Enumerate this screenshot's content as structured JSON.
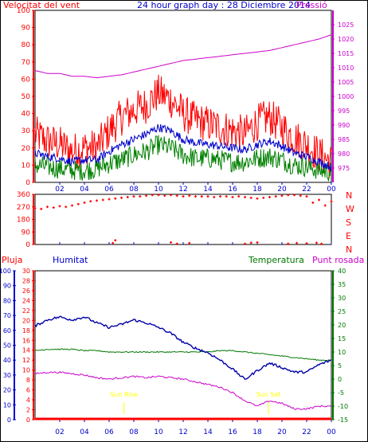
{
  "header": {
    "left_label": "Velocitat del vent",
    "title": "24 hour graph day : 28 Diciembre 2014",
    "right_label": "Pressió"
  },
  "bottom_header": {
    "rain": "Pluja",
    "humidity": "Humitat",
    "temperature": "Temperatura",
    "dewpoint": "Punt rosada"
  },
  "markers": {
    "sunrise": "Sun Rise",
    "sunset": "Sun Set"
  },
  "colors": {
    "wind_gust": "#ff0000",
    "wind_avg": "#0000cc",
    "wind_min": "#008000",
    "pressure": "#cc00cc",
    "direction": "#ff0000",
    "humidity": "#0000aa",
    "temperature": "#007700",
    "dewpoint": "#cc00cc",
    "rain": "#ff0000",
    "sun": "#ffff00"
  },
  "chart_data": [
    {
      "type": "line",
      "x_ticks": [
        "02",
        "04",
        "06",
        "08",
        "10",
        "12",
        "14",
        "16",
        "18",
        "20",
        "22",
        "00"
      ],
      "ylabel_left": "Velocitat del vent",
      "ylabel_right": "Pressió",
      "ylim_left": [
        0,
        100
      ],
      "ylim_right": [
        970,
        1030
      ],
      "yticks_left": [
        0,
        10,
        20,
        30,
        40,
        50,
        60,
        70,
        80,
        90,
        100
      ],
      "yticks_right": [
        975,
        980,
        985,
        990,
        995,
        1000,
        1005,
        1010,
        1015,
        1020,
        1025
      ],
      "series": [
        {
          "name": "gust",
          "axis": "left",
          "x": [
            0,
            1,
            2,
            3,
            4,
            5,
            6,
            7,
            8,
            9,
            10,
            11,
            12,
            13,
            14,
            15,
            16,
            17,
            18,
            19,
            20,
            21,
            22,
            23,
            24
          ],
          "values": [
            28,
            24,
            22,
            18,
            20,
            20,
            30,
            38,
            42,
            45,
            52,
            48,
            40,
            36,
            34,
            32,
            30,
            28,
            35,
            38,
            32,
            26,
            22,
            16,
            12
          ]
        },
        {
          "name": "avg",
          "axis": "left",
          "x": [
            0,
            1,
            2,
            3,
            4,
            5,
            6,
            7,
            8,
            9,
            10,
            11,
            12,
            13,
            14,
            15,
            16,
            17,
            18,
            19,
            20,
            21,
            22,
            23,
            24
          ],
          "values": [
            17,
            15,
            14,
            12,
            13,
            13,
            18,
            22,
            25,
            28,
            32,
            30,
            25,
            23,
            22,
            21,
            20,
            19,
            22,
            24,
            21,
            17,
            15,
            12,
            9
          ]
        },
        {
          "name": "min",
          "axis": "left",
          "x": [
            0,
            1,
            2,
            3,
            4,
            5,
            6,
            7,
            8,
            9,
            10,
            11,
            12,
            13,
            14,
            15,
            16,
            17,
            18,
            19,
            20,
            21,
            22,
            23,
            24
          ],
          "values": [
            10,
            9,
            8,
            7,
            7,
            8,
            11,
            13,
            16,
            18,
            22,
            20,
            16,
            14,
            14,
            13,
            12,
            12,
            14,
            15,
            13,
            10,
            9,
            7,
            6
          ]
        },
        {
          "name": "pressure",
          "axis": "right",
          "x": [
            0,
            1,
            2,
            3,
            4,
            5,
            6,
            7,
            8,
            9,
            10,
            11,
            12,
            13,
            14,
            15,
            16,
            17,
            18,
            19,
            20,
            21,
            22,
            23,
            24
          ],
          "values": [
            1009,
            1008,
            1008,
            1007,
            1007,
            1006.5,
            1007,
            1007.5,
            1008.5,
            1009.5,
            1010.5,
            1011.5,
            1012.5,
            1013,
            1013.5,
            1014,
            1014.5,
            1015,
            1015.5,
            1016,
            1017,
            1018,
            1019,
            1020,
            1021.5
          ]
        }
      ]
    },
    {
      "type": "scatter",
      "x_ticks": [
        "02",
        "04",
        "06",
        "08",
        "10",
        "12",
        "14",
        "16",
        "18",
        "20",
        "22",
        "00"
      ],
      "yticks": [
        0,
        90,
        180,
        270,
        360
      ],
      "ylim": [
        0,
        360
      ],
      "compass": [
        "N",
        "W",
        "S",
        "E",
        "N"
      ],
      "points": [
        [
          0,
          260
        ],
        [
          0.5,
          255
        ],
        [
          1,
          270
        ],
        [
          1.5,
          265
        ],
        [
          2,
          275
        ],
        [
          2.5,
          270
        ],
        [
          3,
          280
        ],
        [
          3.5,
          290
        ],
        [
          4,
          300
        ],
        [
          4.5,
          310
        ],
        [
          5,
          315
        ],
        [
          5.5,
          320
        ],
        [
          6,
          325
        ],
        [
          6.5,
          330
        ],
        [
          7,
          335
        ],
        [
          7.5,
          340
        ],
        [
          8,
          345
        ],
        [
          8.5,
          345
        ],
        [
          9,
          350
        ],
        [
          9.5,
          355
        ],
        [
          10,
          355
        ],
        [
          10.5,
          350
        ],
        [
          11,
          355
        ],
        [
          11.5,
          350
        ],
        [
          12,
          345
        ],
        [
          12.5,
          350
        ],
        [
          13,
          345
        ],
        [
          13.5,
          345
        ],
        [
          14,
          345
        ],
        [
          14.5,
          340
        ],
        [
          15,
          345
        ],
        [
          15.5,
          345
        ],
        [
          16,
          340
        ],
        [
          16.5,
          345
        ],
        [
          17,
          340
        ],
        [
          17.5,
          335
        ],
        [
          18,
          330
        ],
        [
          18.5,
          335
        ],
        [
          19,
          340
        ],
        [
          19.5,
          345
        ],
        [
          20,
          350
        ],
        [
          20.5,
          355
        ],
        [
          21,
          355
        ],
        [
          21.5,
          350
        ],
        [
          22,
          345
        ],
        [
          22.5,
          300
        ],
        [
          23,
          320
        ],
        [
          23.5,
          280
        ],
        [
          24,
          310
        ],
        [
          6.5,
          30
        ],
        [
          6.3,
          10
        ],
        [
          11,
          15
        ],
        [
          11.5,
          5
        ],
        [
          12.5,
          10
        ],
        [
          17,
          5
        ],
        [
          17.5,
          12
        ],
        [
          18,
          15
        ],
        [
          20.5,
          5
        ],
        [
          21.2,
          10
        ],
        [
          22,
          8
        ],
        [
          22.8,
          12
        ],
        [
          23.2,
          5
        ]
      ]
    },
    {
      "type": "line",
      "x_ticks": [
        "02",
        "04",
        "06",
        "08",
        "10",
        "12",
        "14",
        "16",
        "18",
        "20",
        "22",
        "00"
      ],
      "ylabel_left_rain": "Pluja",
      "ylabel_left_hum": "Humitat",
      "ylabel_right_temp": "Temperatura",
      "ylabel_right_dew": "Punt rosada",
      "ylim_humidity": [
        0,
        100
      ],
      "ylim_rain": [
        0,
        30
      ],
      "ylim_temp": [
        -15,
        40
      ],
      "yticks_humidity": [
        0,
        10,
        20,
        30,
        40,
        50,
        60,
        70,
        80,
        90,
        100
      ],
      "yticks_rain": [
        0,
        2,
        4,
        6,
        8,
        10,
        12,
        14,
        16,
        18,
        20,
        22,
        24,
        26,
        28,
        30
      ],
      "yticks_temp": [
        -15,
        -10,
        -5,
        0,
        5,
        10,
        15,
        20,
        25,
        30,
        35,
        40
      ],
      "series": [
        {
          "name": "humidity",
          "x": [
            0,
            1,
            2,
            3,
            4,
            5,
            6,
            7,
            8,
            9,
            10,
            11,
            12,
            13,
            14,
            15,
            16,
            17,
            18,
            19,
            20,
            21,
            22,
            23,
            24
          ],
          "values": [
            63,
            67,
            69,
            67,
            69,
            65,
            62,
            64,
            67,
            65,
            62,
            58,
            52,
            48,
            45,
            40,
            34,
            27,
            33,
            38,
            35,
            32,
            32,
            37,
            40
          ]
        },
        {
          "name": "temperature",
          "x": [
            0,
            1,
            2,
            3,
            4,
            5,
            6,
            7,
            8,
            9,
            10,
            11,
            12,
            13,
            14,
            15,
            16,
            17,
            18,
            19,
            20,
            21,
            22,
            23,
            24
          ],
          "values": [
            10.5,
            11,
            11,
            11,
            10.5,
            10.5,
            10,
            10,
            10,
            10,
            10,
            10,
            10,
            10,
            10,
            10.5,
            10.5,
            10,
            9.5,
            9,
            8.5,
            8,
            7.5,
            7,
            7
          ]
        },
        {
          "name": "dewpoint",
          "x": [
            0,
            1,
            2,
            3,
            4,
            5,
            6,
            7,
            8,
            9,
            10,
            11,
            12,
            13,
            14,
            15,
            16,
            17,
            18,
            19,
            20,
            21,
            22,
            23,
            24
          ],
          "values": [
            2,
            2.5,
            2.5,
            2,
            1.5,
            0.5,
            0,
            0.5,
            1,
            0.5,
            1,
            0.5,
            0,
            -1,
            -2,
            -3,
            -5,
            -8,
            -10,
            -8,
            -9,
            -11,
            -11,
            -10,
            -10
          ]
        },
        {
          "name": "rain",
          "x": [
            0,
            24
          ],
          "values": [
            0,
            0
          ]
        }
      ],
      "sunrise_hour": 7.2,
      "sunset_hour": 18.9
    }
  ]
}
